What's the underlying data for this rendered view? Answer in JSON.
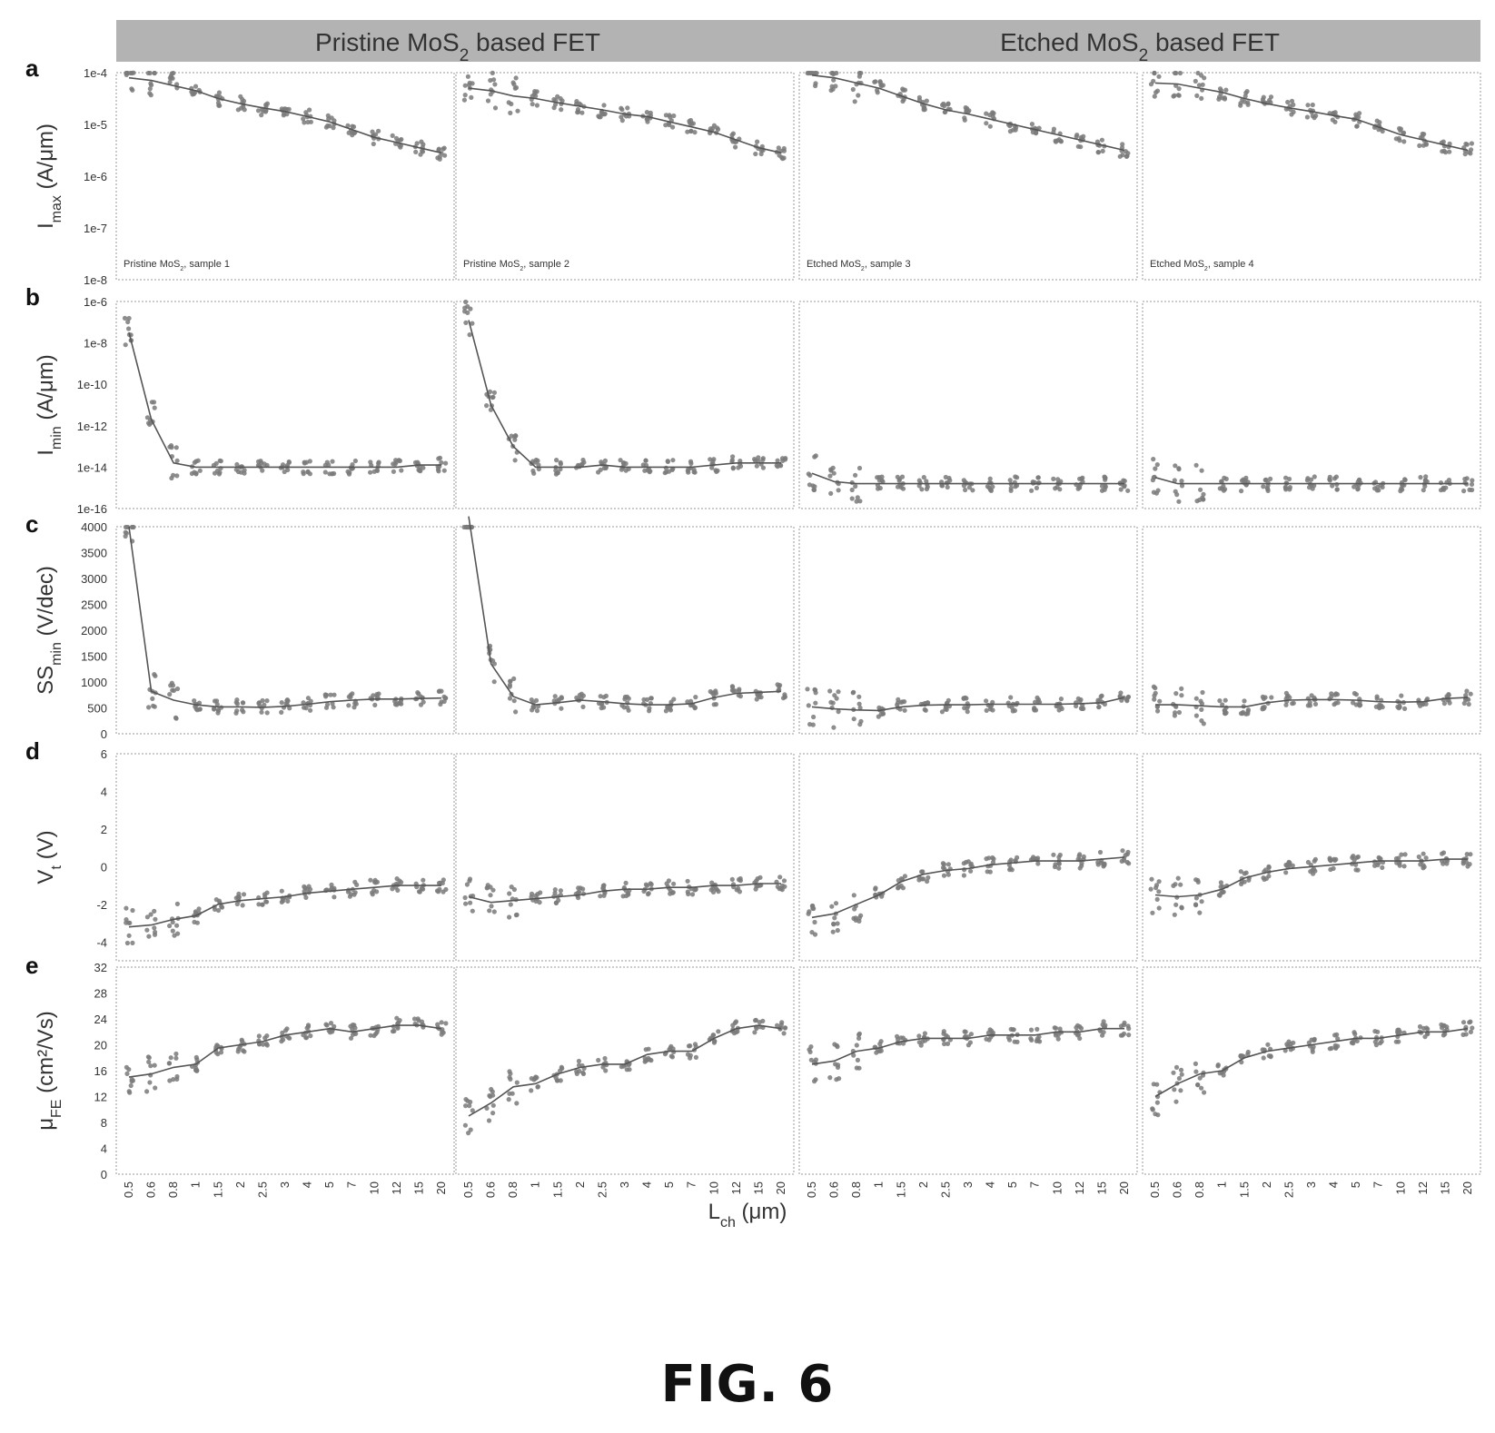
{
  "figure_label": "FIG. 6",
  "colors": {
    "points": "#7a7a7a",
    "line": "#555555",
    "header_bg": "#b3b3b3",
    "frame": "#9a9a9a",
    "text": "#333333"
  },
  "group_headers": [
    {
      "pre": "Pristine MoS",
      "sub": "2",
      "post": " based FET"
    },
    {
      "pre": "Etched MoS",
      "sub": "2",
      "post": " based FET"
    }
  ],
  "panel_letters": [
    "a",
    "b",
    "c",
    "d",
    "e"
  ],
  "x_axis": {
    "label_main": "L",
    "label_sub": "ch",
    "label_unit": " (μm)",
    "ticks": [
      "0.5",
      "0.6",
      "0.8",
      "1",
      "1.5",
      "2",
      "2.5",
      "3",
      "4",
      "5",
      "7",
      "10",
      "12",
      "15",
      "20"
    ]
  },
  "sample_labels": [
    {
      "pre": "Pristine MoS",
      "sub": "2",
      "post": ", sample 1"
    },
    {
      "pre": "Pristine MoS",
      "sub": "2",
      "post": ", sample 2"
    },
    {
      "pre": "Etched MoS",
      "sub": "2",
      "post": ", sample 3"
    },
    {
      "pre": "Etched MoS",
      "sub": "2",
      "post": ", sample 4"
    }
  ],
  "rows": [
    {
      "key": "Imax",
      "ylabel": {
        "main": "I",
        "sub": "max",
        "unit": " (A/μm)"
      },
      "scale": "log",
      "ylim": [
        -8,
        -4
      ],
      "yticks": [
        "1e-8",
        "1e-7",
        "1e-6",
        "1e-5",
        "1e-4"
      ]
    },
    {
      "key": "Imin",
      "ylabel": {
        "main": "I",
        "sub": "min",
        "unit": " (A/μm)"
      },
      "scale": "log",
      "ylim": [
        -16,
        -6
      ],
      "yticks": [
        "1e-16",
        "1e-14",
        "1e-12",
        "1e-10",
        "1e-8",
        "1e-6"
      ]
    },
    {
      "key": "SSmin",
      "ylabel": {
        "main": "SS",
        "sub": "min",
        "unit": " (V/dec)"
      },
      "scale": "linear",
      "ylim": [
        0,
        4000
      ],
      "yticks": [
        "0",
        "500",
        "1000",
        "1500",
        "2000",
        "2500",
        "3000",
        "3500",
        "4000"
      ]
    },
    {
      "key": "Vt",
      "ylabel": {
        "main": "V",
        "sub": "t",
        "unit": " (V)"
      },
      "scale": "linear",
      "ylim": [
        -5,
        6
      ],
      "yticks": [
        "-4",
        "-2",
        "0",
        "2",
        "4",
        "6"
      ]
    },
    {
      "key": "uFE",
      "ylabel": {
        "main": "μ",
        "sub": "FE",
        "unit": " (cm²/Vs)"
      },
      "scale": "linear",
      "ylim": [
        0,
        32
      ],
      "yticks": [
        "0",
        "4",
        "8",
        "12",
        "16",
        "20",
        "24",
        "28",
        "32"
      ]
    }
  ],
  "chart_data": {
    "type": "scatter",
    "x": [
      "0.5",
      "0.6",
      "0.8",
      "1",
      "1.5",
      "2",
      "2.5",
      "3",
      "4",
      "5",
      "7",
      "10",
      "12",
      "15",
      "20"
    ],
    "series_note": "median trend line per sample; Imax and Imin values are log10(A/μm)",
    "medians": {
      "Imax": [
        [
          -4.1,
          -4.15,
          -4.25,
          -4.35,
          -4.5,
          -4.6,
          -4.68,
          -4.75,
          -4.85,
          -4.95,
          -5.1,
          -5.25,
          -5.35,
          -5.45,
          -5.55
        ],
        [
          -4.3,
          -4.35,
          -4.45,
          -4.5,
          -4.58,
          -4.65,
          -4.72,
          -4.8,
          -4.85,
          -4.95,
          -5.05,
          -5.15,
          -5.3,
          -5.45,
          -5.55
        ],
        [
          -4.05,
          -4.1,
          -4.2,
          -4.3,
          -4.45,
          -4.6,
          -4.72,
          -4.8,
          -4.9,
          -5.0,
          -5.1,
          -5.2,
          -5.3,
          -5.4,
          -5.5
        ],
        [
          -4.2,
          -4.22,
          -4.3,
          -4.38,
          -4.5,
          -4.6,
          -4.68,
          -4.75,
          -4.83,
          -4.9,
          -5.05,
          -5.2,
          -5.3,
          -5.4,
          -5.5
        ]
      ],
      "Imin": [
        [
          -7.5,
          -11.7,
          -13.8,
          -14.0,
          -14.0,
          -14.0,
          -14.0,
          -14.0,
          -14.0,
          -14.0,
          -14.0,
          -14.0,
          -14.0,
          -13.9,
          -13.9
        ],
        [
          -6.9,
          -11.0,
          -13.0,
          -14.0,
          -14.0,
          -14.0,
          -13.9,
          -14.0,
          -14.0,
          -14.0,
          -14.0,
          -13.9,
          -13.8,
          -13.8,
          -13.8
        ],
        [
          -14.3,
          -14.7,
          -14.8,
          -14.8,
          -14.8,
          -14.8,
          -14.8,
          -14.8,
          -14.8,
          -14.8,
          -14.8,
          -14.8,
          -14.8,
          -14.8,
          -14.8
        ],
        [
          -14.5,
          -14.8,
          -14.8,
          -14.8,
          -14.8,
          -14.8,
          -14.8,
          -14.8,
          -14.8,
          -14.8,
          -14.8,
          -14.8,
          -14.8,
          -14.8,
          -14.8
        ]
      ],
      "SSmin": [
        [
          4000,
          820,
          650,
          560,
          520,
          520,
          510,
          530,
          570,
          620,
          650,
          670,
          670,
          680,
          690
        ],
        [
          4200,
          1350,
          720,
          560,
          600,
          650,
          620,
          580,
          560,
          560,
          580,
          700,
          780,
          800,
          820
        ],
        [
          520,
          480,
          460,
          450,
          520,
          550,
          560,
          560,
          570,
          570,
          570,
          570,
          580,
          600,
          700
        ],
        [
          560,
          560,
          540,
          520,
          520,
          600,
          650,
          660,
          660,
          650,
          620,
          610,
          620,
          680,
          700
        ]
      ],
      "Vt": [
        [
          -3.2,
          -3.1,
          -2.8,
          -2.6,
          -2.0,
          -1.8,
          -1.7,
          -1.6,
          -1.4,
          -1.3,
          -1.2,
          -1.1,
          -1.0,
          -1.0,
          -1.0
        ],
        [
          -1.6,
          -1.9,
          -1.8,
          -1.7,
          -1.6,
          -1.5,
          -1.3,
          -1.2,
          -1.2,
          -1.1,
          -1.1,
          -1.0,
          -1.0,
          -0.9,
          -0.9
        ],
        [
          -2.7,
          -2.5,
          -2.0,
          -1.5,
          -0.8,
          -0.4,
          -0.2,
          -0.1,
          0.1,
          0.2,
          0.3,
          0.3,
          0.3,
          0.4,
          0.5
        ],
        [
          -1.5,
          -1.6,
          -1.5,
          -1.2,
          -0.6,
          -0.3,
          -0.1,
          0.0,
          0.1,
          0.2,
          0.3,
          0.3,
          0.3,
          0.4,
          0.4
        ]
      ],
      "uFE": [
        [
          15.0,
          15.5,
          16.5,
          17.0,
          19.5,
          20.0,
          20.5,
          21.5,
          22.0,
          22.5,
          22.0,
          22.5,
          23.0,
          23.0,
          22.5
        ],
        [
          9.0,
          11.0,
          13.5,
          14.0,
          15.5,
          16.5,
          17.0,
          17.0,
          18.5,
          19.0,
          19.0,
          21.0,
          22.5,
          23.0,
          22.5
        ],
        [
          17.0,
          17.5,
          19.0,
          19.5,
          20.5,
          21.0,
          21.0,
          21.0,
          21.5,
          21.5,
          21.5,
          22.0,
          22.0,
          22.5,
          22.5
        ],
        [
          12.0,
          14.0,
          15.5,
          16.0,
          18.0,
          19.0,
          19.5,
          20.0,
          20.5,
          21.0,
          21.0,
          21.5,
          22.0,
          22.0,
          22.5
        ]
      ]
    }
  }
}
